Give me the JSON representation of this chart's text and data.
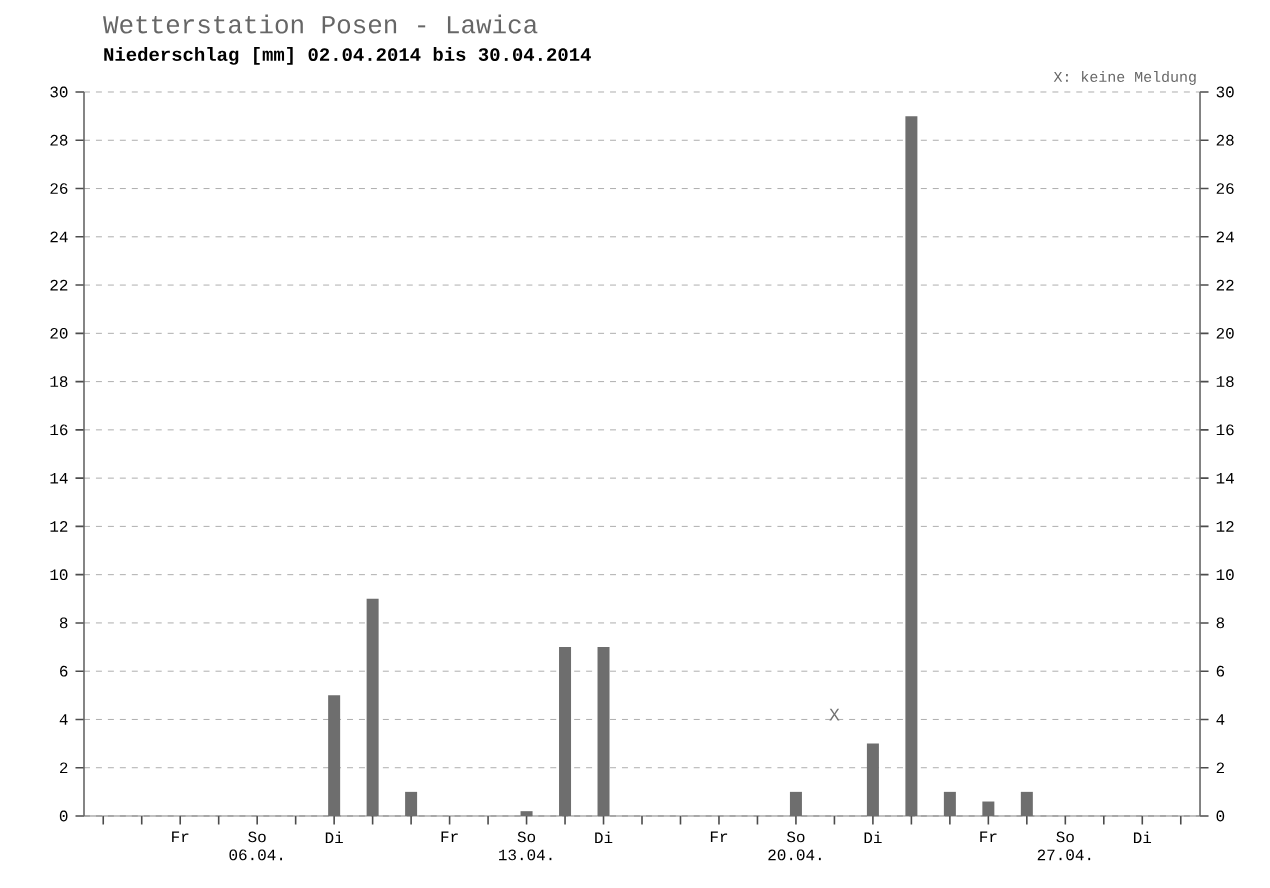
{
  "chart_data": {
    "type": "bar",
    "title": "Wetterstation Posen - Lawica",
    "subtitle": "Niederschlag [mm] 02.04.2014 bis 30.04.2014",
    "categories": [
      null,
      null,
      "Fr",
      null,
      "So 06.04.",
      null,
      "Di",
      null,
      null,
      "Fr",
      null,
      "So 13.04.",
      null,
      "Di",
      null,
      null,
      "Fr",
      null,
      "So 20.04.",
      null,
      "Di",
      null,
      null,
      "Fr",
      null,
      "So 27.04.",
      null,
      "Di",
      null
    ],
    "values": [
      0,
      0,
      0,
      0,
      0,
      0,
      5,
      9,
      1,
      0,
      0,
      0.2,
      7,
      7,
      0,
      0,
      0,
      0,
      1,
      null,
      3,
      29,
      1,
      0.6,
      1,
      0,
      0,
      0,
      0
    ],
    "color": "#6e6e6e",
    "ylim": [
      0,
      30
    ],
    "yticks": [
      0,
      2,
      4,
      6,
      8,
      10,
      12,
      14,
      16,
      18,
      20,
      22,
      24,
      26,
      28,
      30
    ],
    "y2lim": [
      0,
      30
    ],
    "y2ticks": [
      0,
      2,
      4,
      6,
      8,
      10,
      12,
      14,
      16,
      18,
      20,
      22,
      24,
      26,
      28,
      30
    ],
    "grid": "y",
    "annotations": [
      "X",
      "X: keine Meldung"
    ]
  }
}
